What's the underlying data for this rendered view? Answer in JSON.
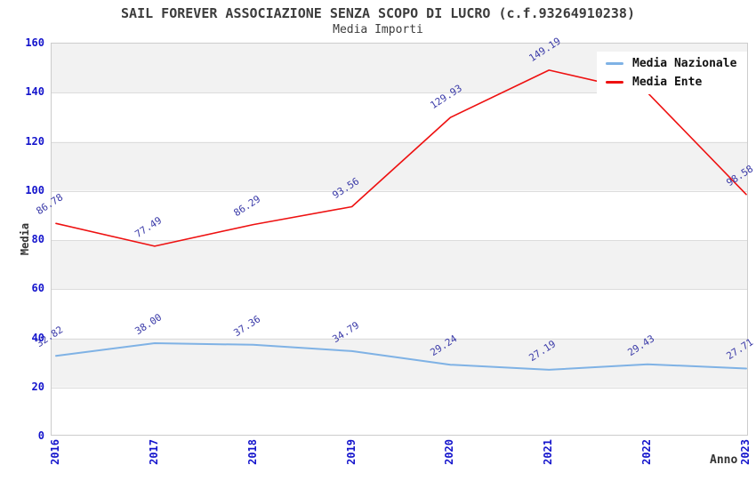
{
  "title": "SAIL FOREVER ASSOCIAZIONE SENZA SCOPO DI LUCRO (c.f.93264910238)",
  "subtitle": "Media Importi",
  "axes": {
    "y_title": "Media",
    "x_title": "Anno",
    "y_ticks": [
      "0",
      "20",
      "40",
      "60",
      "80",
      "100",
      "120",
      "140",
      "160"
    ],
    "x_ticks": [
      "2016",
      "2017",
      "2018",
      "2019",
      "2020",
      "2021",
      "2022",
      "2023"
    ]
  },
  "legend": {
    "items": [
      {
        "label": "Media Nazionale",
        "color": "#7fb2e5"
      },
      {
        "label": "Media Ente",
        "color": "#ee1111"
      }
    ]
  },
  "colors": {
    "nazionale_line": "#7fb2e5",
    "ente_line": "#ee1111",
    "tick_label": "#1414cc",
    "data_label": "#3a3aa8",
    "band_gray": "#f2f2f2",
    "plot_border": "#cccccc"
  },
  "chart_data": {
    "type": "line",
    "x": [
      2016,
      2017,
      2018,
      2019,
      2020,
      2021,
      2022,
      2023
    ],
    "categories": [
      "2016",
      "2017",
      "2018",
      "2019",
      "2020",
      "2021",
      "2022",
      "2023"
    ],
    "series": [
      {
        "name": "Media Nazionale",
        "color": "#7fb2e5",
        "stroke_width": 2,
        "values": [
          32.82,
          38.0,
          37.36,
          34.79,
          29.24,
          27.19,
          29.43,
          27.71
        ],
        "labels": [
          "32.82",
          "38.00",
          "37.36",
          "34.79",
          "29.24",
          "27.19",
          "29.43",
          "27.71"
        ]
      },
      {
        "name": "Media Ente",
        "color": "#ee1111",
        "stroke_width": 1.6,
        "values": [
          86.78,
          77.49,
          86.29,
          93.56,
          129.93,
          149.19,
          140.0,
          98.58
        ],
        "labels": [
          "86.78",
          "77.49",
          "86.29",
          "93.56",
          "129.93",
          "149.19",
          "",
          "98.58"
        ]
      }
    ],
    "title": "Media Importi",
    "xlabel": "Anno",
    "ylabel": "Media",
    "ylim": [
      0,
      160
    ],
    "grid": true,
    "legend_position": "top-right",
    "notes": "2022 Media Ente label hidden behind legend box"
  }
}
